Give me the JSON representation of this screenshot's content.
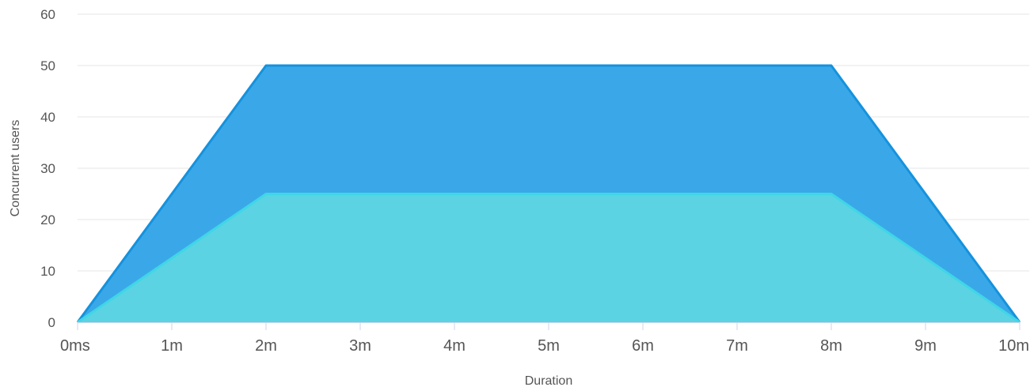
{
  "chart_data": {
    "type": "area",
    "xlabel": "Duration",
    "ylabel": "Concurrent users",
    "x": [
      0,
      2,
      8,
      10
    ],
    "x_unit": "minutes",
    "xlim": [
      0,
      10
    ],
    "ylim": [
      0,
      60
    ],
    "x_ticks": [
      0,
      1,
      2,
      3,
      4,
      5,
      6,
      7,
      8,
      9,
      10
    ],
    "x_tick_labels": [
      "0ms",
      "1m",
      "2m",
      "3m",
      "4m",
      "5m",
      "6m",
      "7m",
      "8m",
      "9m",
      "10m"
    ],
    "y_ticks": [
      0,
      10,
      20,
      30,
      40,
      50,
      60
    ],
    "y_tick_labels": [
      "0",
      "10",
      "20",
      "30",
      "40",
      "50",
      "60"
    ],
    "grid": true,
    "series": [
      {
        "values": [
          0,
          50,
          50,
          0
        ],
        "color": "#1a9ae6",
        "fill": "#3aa8e8",
        "line_color": "#1592de"
      },
      {
        "values": [
          0,
          25,
          25,
          0
        ],
        "color": "#33d0e0",
        "fill": "#5bd3e3",
        "line_color": "#3fd6e6"
      }
    ]
  }
}
